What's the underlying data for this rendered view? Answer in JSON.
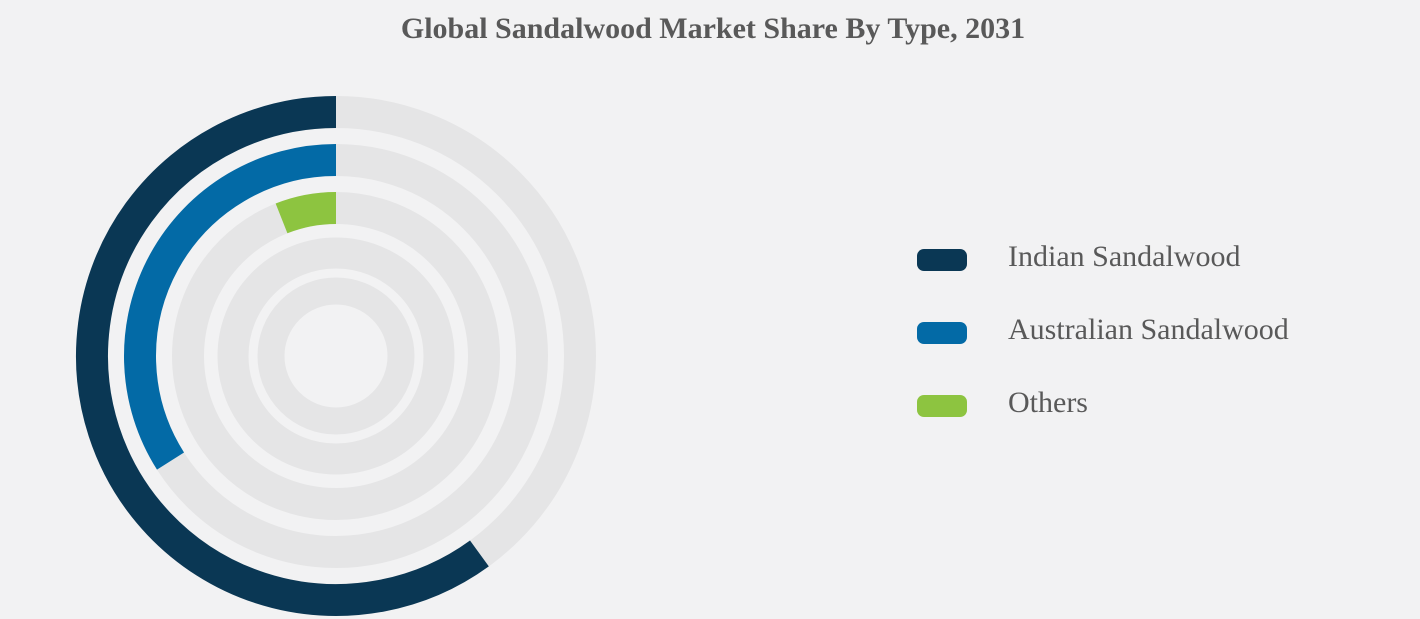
{
  "chart_data": {
    "type": "radial-bar",
    "title": "Global Sandalwood Market Share By Type, 2031",
    "series": [
      {
        "name": "Indian Sandalwood",
        "value": 60,
        "color": "#0a3754"
      },
      {
        "name": "Australian Sandalwood",
        "value": 34,
        "color": "#036aa6"
      },
      {
        "name": "Others",
        "value": 6,
        "color": "#8dc440"
      }
    ],
    "max": 100,
    "track_color": "#e5e5e6",
    "empty_rings": 2,
    "legend_position": "right"
  }
}
